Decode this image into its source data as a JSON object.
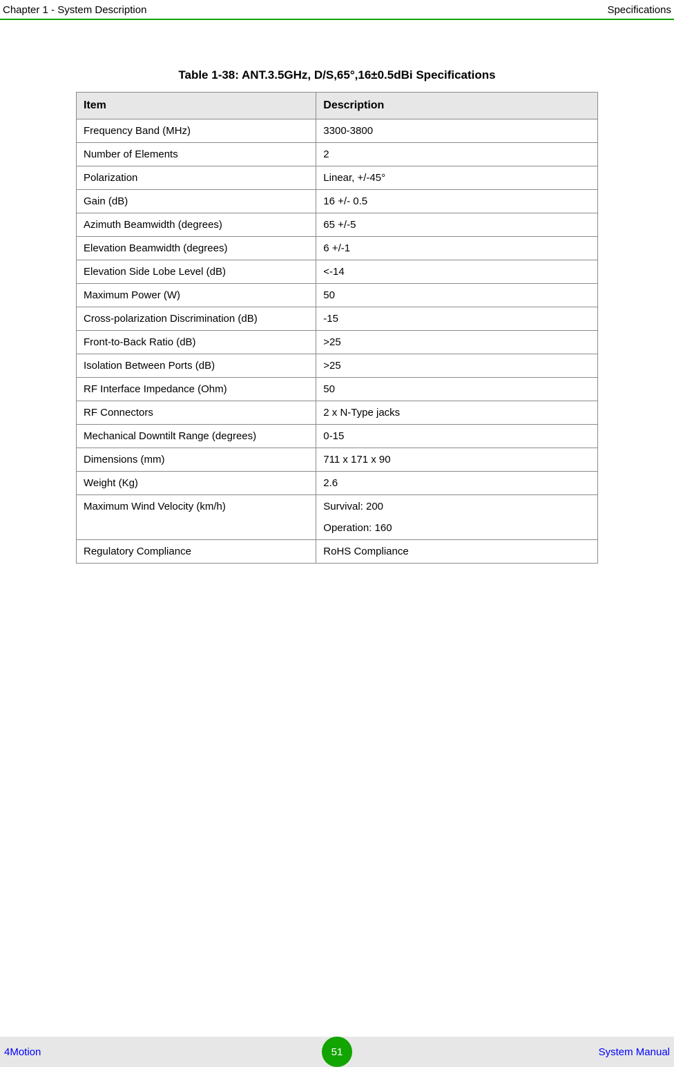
{
  "header": {
    "left": "Chapter 1 - System Description",
    "right": "Specifications",
    "rule_color": "#12a400"
  },
  "table": {
    "title": "Table 1-38: ANT.3.5GHz, D/S,65°,16±0.5dBi Specifications",
    "columns": [
      "Item",
      "Description"
    ],
    "header_bg": "#e7e7e7",
    "border_color": "#8a8a8a",
    "rows": [
      {
        "item": "Frequency Band (MHz)",
        "desc": "3300-3800"
      },
      {
        "item": "Number of Elements",
        "desc": "2"
      },
      {
        "item": "Polarization",
        "desc": "Linear, +/-45°"
      },
      {
        "item": "Gain (dB)",
        "desc": "16 +/- 0.5"
      },
      {
        "item": "Azimuth Beamwidth (degrees)",
        "desc": "65 +/-5"
      },
      {
        "item": "Elevation Beamwidth (degrees)",
        "desc": "6 +/-1"
      },
      {
        "item": "Elevation Side Lobe Level (dB)",
        "desc": "<-14"
      },
      {
        "item": "Maximum Power (W)",
        "desc": "50"
      },
      {
        "item": "Cross-polarization Discrimination (dB)",
        "desc": "-15"
      },
      {
        "item": "Front-to-Back Ratio (dB)",
        "desc": ">25"
      },
      {
        "item": "Isolation Between Ports (dB)",
        "desc": ">25"
      },
      {
        "item": "RF Interface Impedance (Ohm)",
        "desc": "50"
      },
      {
        "item": "RF Connectors",
        "desc": "2 x N-Type jacks"
      },
      {
        "item": "Mechanical Downtilt Range (degrees)",
        "desc": "0-15"
      },
      {
        "item": "Dimensions (mm)",
        "desc": "711 x 171 x 90"
      },
      {
        "item": "Weight (Kg)",
        "desc": "2.6"
      },
      {
        "item": "Maximum Wind Velocity (km/h)",
        "desc_lines": [
          "Survival: 200",
          "Operation: 160"
        ]
      },
      {
        "item": "Regulatory Compliance",
        "desc": "RoHS Compliance"
      }
    ]
  },
  "footer": {
    "left": "4Motion",
    "page": "51",
    "right": "System Manual",
    "bg": "#e7e7e7",
    "badge_color": "#12a400",
    "link_color": "#0000ff"
  }
}
